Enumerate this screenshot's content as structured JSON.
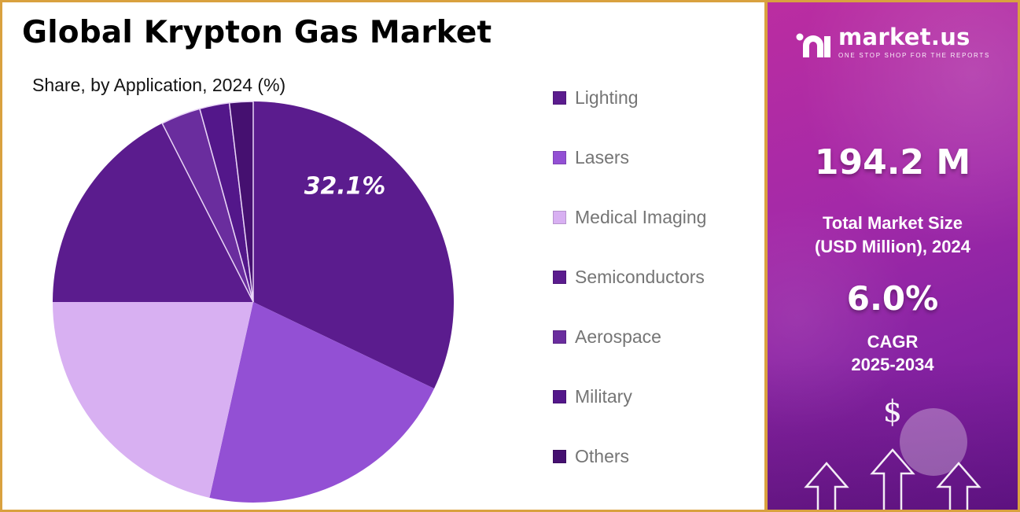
{
  "header": {
    "title": "Global Krypton Gas Market",
    "subtitle": "Share, by Application, 2024 (%)"
  },
  "chart_data": {
    "type": "pie",
    "title": "Global Krypton Gas Market",
    "subtitle": "Share, by Application, 2024 (%)",
    "unit": "%",
    "labels": [
      "Lighting",
      "Lasers",
      "Medical Imaging",
      "Semiconductors",
      "Aerospace",
      "Military",
      "Others"
    ],
    "values": [
      32.1,
      21.4,
      21.5,
      17.5,
      3.2,
      2.4,
      1.9
    ],
    "colors": [
      "#5b1c8e",
      "#9350d4",
      "#d8b0f2",
      "#5b1c8e",
      "#6a2d9e",
      "#53178a",
      "#451070"
    ],
    "start_angle_deg": 0,
    "direction": "clockwise",
    "legend_position": "right",
    "data_label": {
      "text": "32.1%",
      "slice_index": 0
    }
  },
  "side_panel": {
    "brand": {
      "name": "market.us",
      "tagline": "ONE STOP SHOP FOR THE REPORTS"
    },
    "market_size_value": "194.2 M",
    "market_size_label_line1": "Total Market Size",
    "market_size_label_line2": "(USD Million), 2024",
    "cagr_value": "6.0%",
    "cagr_label_line1": "CAGR",
    "cagr_label_line2": "2025-2034",
    "currency_symbol": "$"
  }
}
